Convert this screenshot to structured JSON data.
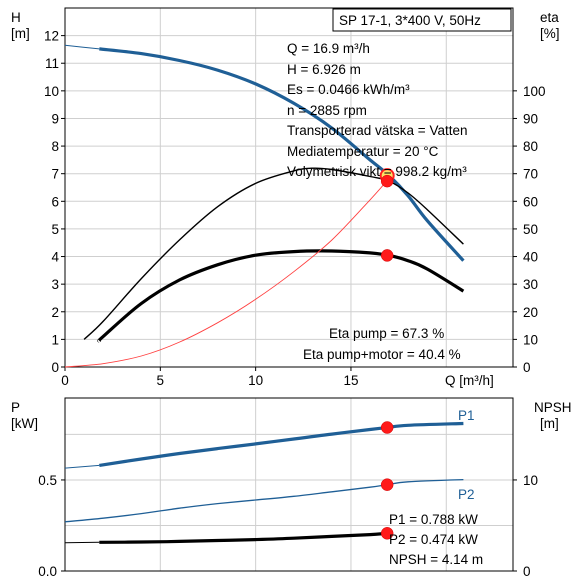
{
  "top_chart": {
    "title": "SP 17-1, 3*400 V, 50Hz",
    "y_left_label": "H",
    "y_left_unit": "[m]",
    "y_right_label": "eta",
    "y_right_unit": "[%]",
    "x_label": "Q [m³/h]",
    "x_ticks": [
      "0",
      "5",
      "10",
      "15"
    ],
    "y_left_ticks": [
      "0",
      "1",
      "2",
      "3",
      "4",
      "5",
      "6",
      "7",
      "8",
      "9",
      "10",
      "11",
      "12"
    ],
    "y_right_ticks": [
      "0",
      "10",
      "20",
      "30",
      "40",
      "50",
      "60",
      "70",
      "80",
      "90",
      "100"
    ],
    "info_lines": [
      "Q = 16.9 m³/h",
      "H = 6.926 m",
      "Es = 0.0466 kWh/m³",
      "n = 2885 rpm",
      "Transporterad vätska = Vatten",
      "Mediatemperatur = 20 °C",
      "Volymetrisk vikt = 998.2 kg/m³"
    ],
    "eta_lines": [
      "Eta pump = 67.3 %",
      "Eta pump+motor = 40.4 %"
    ]
  },
  "bottom_chart": {
    "y_left_label": "P",
    "y_left_unit": "[kW]",
    "y_right_label": "NPSH",
    "y_right_unit": "[m]",
    "y_left_ticks": [
      "0.0",
      "0.5"
    ],
    "y_right_ticks": [
      "0",
      "10"
    ],
    "p1_label": "P1",
    "p2_label": "P2",
    "values": [
      "P1 = 0.788 kW",
      "P2 = 0.474 kW",
      "NPSH = 4.14 m"
    ]
  },
  "chart_data": [
    {
      "type": "line",
      "title": "SP 17-1, 3*400 V, 50Hz",
      "xlabel": "Q [m³/h]",
      "ylabel": "H [m]",
      "y2label": "eta [%]",
      "xlim": [
        0,
        23.5
      ],
      "ylim": [
        0,
        13
      ],
      "y2lim": [
        0,
        130
      ],
      "grid": true,
      "colors": {
        "head": "#1f5f96",
        "eta": "#000000",
        "duty": "#ff2020",
        "system": "#ff4040"
      },
      "series": [
        {
          "name": "H",
          "axis": "left",
          "style": "head-ext",
          "x": [
            0,
            1.8
          ],
          "values": [
            11.65,
            11.52
          ]
        },
        {
          "name": "H",
          "axis": "left",
          "style": "head",
          "x": [
            1.8,
            4,
            6,
            8,
            10,
            12,
            14,
            16,
            17,
            18,
            19,
            20.9
          ],
          "values": [
            11.52,
            11.35,
            11.1,
            10.75,
            10.25,
            9.55,
            8.65,
            7.5,
            6.93,
            6.2,
            5.3,
            3.85
          ]
        },
        {
          "name": "eta pump",
          "axis": "right",
          "style": "eta-pump",
          "x": [
            1,
            2,
            4,
            6,
            8,
            10,
            12,
            13,
            14,
            16,
            17,
            18,
            19,
            20.9
          ],
          "values": [
            10,
            16.5,
            32,
            46,
            58,
            66.5,
            71,
            72,
            71.5,
            69,
            67.3,
            63,
            57,
            44.5
          ]
        },
        {
          "name": "eta pump+motor",
          "axis": "right",
          "style": "eta-total",
          "x": [
            1.8,
            2,
            4,
            6,
            8,
            10,
            12,
            14,
            16,
            17,
            18,
            19,
            20.9
          ],
          "values": [
            9.5,
            11,
            23,
            31.5,
            37,
            40.5,
            41.8,
            42,
            41.3,
            40.4,
            38.5,
            35.5,
            27.5
          ]
        },
        {
          "name": "system curve",
          "axis": "left",
          "style": "system",
          "x": [
            0,
            2,
            4,
            6,
            8,
            10,
            12,
            14,
            16,
            16.9
          ],
          "values": [
            0,
            0.12,
            0.4,
            0.9,
            1.6,
            2.45,
            3.45,
            4.6,
            6.05,
            6.75
          ]
        }
      ],
      "duty_points": [
        {
          "x": 16.9,
          "y": 6.93,
          "axis": "left",
          "style": "ring"
        },
        {
          "x": 16.9,
          "y": 67.3,
          "axis": "right"
        },
        {
          "x": 16.9,
          "y": 40.4,
          "axis": "right"
        }
      ]
    },
    {
      "type": "line",
      "ylabel": "P [kW]",
      "y2label": "NPSH [m]",
      "xlim": [
        0,
        23.5
      ],
      "ylim": [
        0,
        0.95
      ],
      "y2lim": [
        0,
        19
      ],
      "grid": true,
      "series": [
        {
          "name": "P1",
          "axis": "left",
          "style": "p1-ext",
          "x": [
            0,
            1.8
          ],
          "values": [
            0.565,
            0.58
          ]
        },
        {
          "name": "P1",
          "axis": "left",
          "style": "p1",
          "x": [
            1.8,
            4,
            6,
            8,
            10,
            12,
            14,
            16,
            16.9,
            18,
            20.9
          ],
          "values": [
            0.58,
            0.615,
            0.645,
            0.672,
            0.698,
            0.725,
            0.752,
            0.777,
            0.788,
            0.8,
            0.81
          ]
        },
        {
          "name": "P2",
          "axis": "left",
          "style": "p2",
          "x": [
            0,
            2,
            4,
            6,
            8,
            10,
            12,
            14,
            16,
            16.9,
            18,
            20.9
          ],
          "values": [
            0.27,
            0.29,
            0.315,
            0.345,
            0.37,
            0.39,
            0.41,
            0.435,
            0.46,
            0.474,
            0.49,
            0.502
          ]
        },
        {
          "name": "NPSH",
          "axis": "right",
          "style": "npsh-ext",
          "x": [
            0,
            1.8
          ],
          "values": [
            3.1,
            3.15
          ]
        },
        {
          "name": "NPSH",
          "axis": "right",
          "style": "npsh",
          "x": [
            1.8,
            4,
            6,
            8,
            10,
            12,
            14,
            16,
            16.9
          ],
          "values": [
            3.15,
            3.18,
            3.25,
            3.35,
            3.45,
            3.6,
            3.8,
            4.0,
            4.14
          ]
        }
      ],
      "duty_points": [
        {
          "x": 16.9,
          "y": 0.788,
          "axis": "left"
        },
        {
          "x": 16.9,
          "y": 0.474,
          "axis": "left"
        },
        {
          "x": 16.9,
          "y": 4.14,
          "axis": "right"
        }
      ]
    }
  ]
}
